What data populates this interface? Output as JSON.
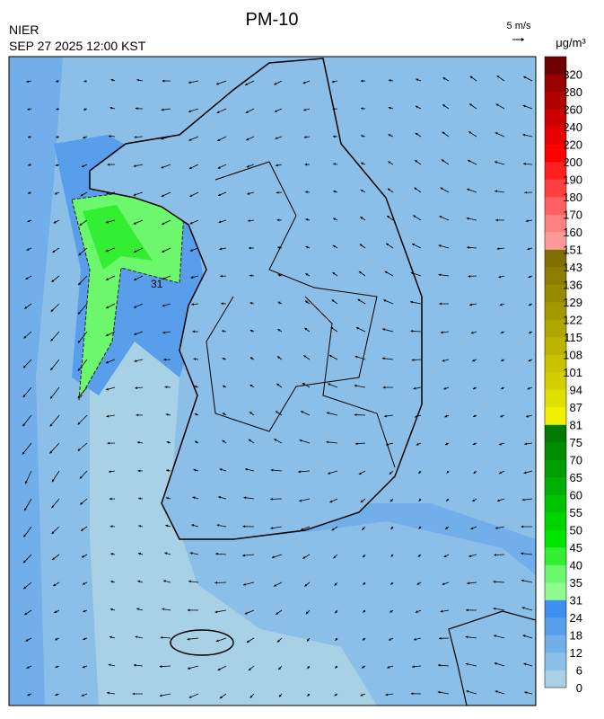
{
  "header": {
    "title": "PM-10",
    "source": "NIER",
    "datetime": "SEP 27 2025 12:00 KST",
    "wind_scale": "5 m/s"
  },
  "map": {
    "contour_label": "31"
  },
  "colorbar": {
    "unit": "μg/m³",
    "levels": [
      0,
      6,
      12,
      18,
      24,
      31,
      35,
      40,
      45,
      50,
      55,
      60,
      65,
      70,
      75,
      81,
      87,
      94,
      101,
      108,
      115,
      122,
      129,
      136,
      143,
      151,
      160,
      170,
      180,
      190,
      200,
      220,
      240,
      260,
      280,
      320
    ],
    "colors": [
      "#a8d1e6",
      "#8cbfe8",
      "#72aee9",
      "#589eea",
      "#3d8ff0",
      "#90fb90",
      "#6cf76c",
      "#33ee33",
      "#00e600",
      "#00d400",
      "#00c200",
      "#00b000",
      "#009e00",
      "#008c00",
      "#007a00",
      "#f0f000",
      "#e0e000",
      "#d4d000",
      "#c8c200",
      "#bcb400",
      "#b0a600",
      "#a49800",
      "#988a00",
      "#8c7c00",
      "#806e00",
      "#ff9a9a",
      "#ff8080",
      "#ff6060",
      "#ff4040",
      "#ff2020",
      "#ff0000",
      "#e60000",
      "#cc0000",
      "#b30000",
      "#990000",
      "#6e0000"
    ]
  }
}
